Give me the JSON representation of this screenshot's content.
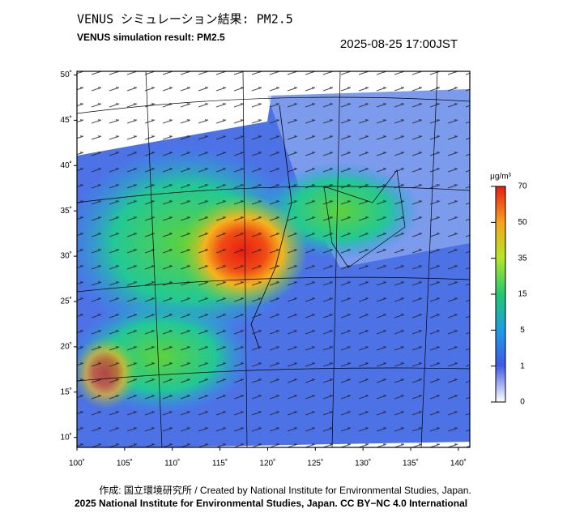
{
  "header": {
    "title_ja": "VENUS シミュレーション結果: PM2.5",
    "title_en": "VENUS simulation result: PM2.5",
    "timestamp": "2025-08-25 17:00JST"
  },
  "map": {
    "xlim": [
      100,
      141.2
    ],
    "ylim": [
      8.9,
      50.4
    ],
    "lon_ticks": [
      {
        "value": 100,
        "label": "100˚"
      },
      {
        "value": 105,
        "label": "105˚"
      },
      {
        "value": 110,
        "label": "110˚"
      },
      {
        "value": 115,
        "label": "115˚"
      },
      {
        "value": 120,
        "label": "120˚"
      },
      {
        "value": 125,
        "label": "125˚"
      },
      {
        "value": 130,
        "label": "130˚"
      },
      {
        "value": 135,
        "label": "135˚"
      },
      {
        "value": 140,
        "label": "140˚"
      }
    ],
    "lat_ticks": [
      {
        "value": 10,
        "label": "10˚"
      },
      {
        "value": 15,
        "label": "15˚"
      },
      {
        "value": 20,
        "label": "20˚"
      },
      {
        "value": 25,
        "label": "25˚"
      },
      {
        "value": 30,
        "label": "30˚"
      },
      {
        "value": 35,
        "label": "35˚"
      },
      {
        "value": 40,
        "label": "40˚"
      },
      {
        "value": 45,
        "label": "45˚"
      },
      {
        "value": 50,
        "label": "50˚"
      }
    ]
  },
  "colorbar": {
    "unit": "μg/m³",
    "ticks": [
      0,
      1,
      5,
      15,
      35,
      50,
      70
    ]
  },
  "footer": {
    "credit": "作成: 国立環境研究所 / Created by National Institute for Environmental Studies, Japan.",
    "license": "2025 National Institute for Environmental Studies, Japan. CC BY−NC 4.0 International"
  }
}
